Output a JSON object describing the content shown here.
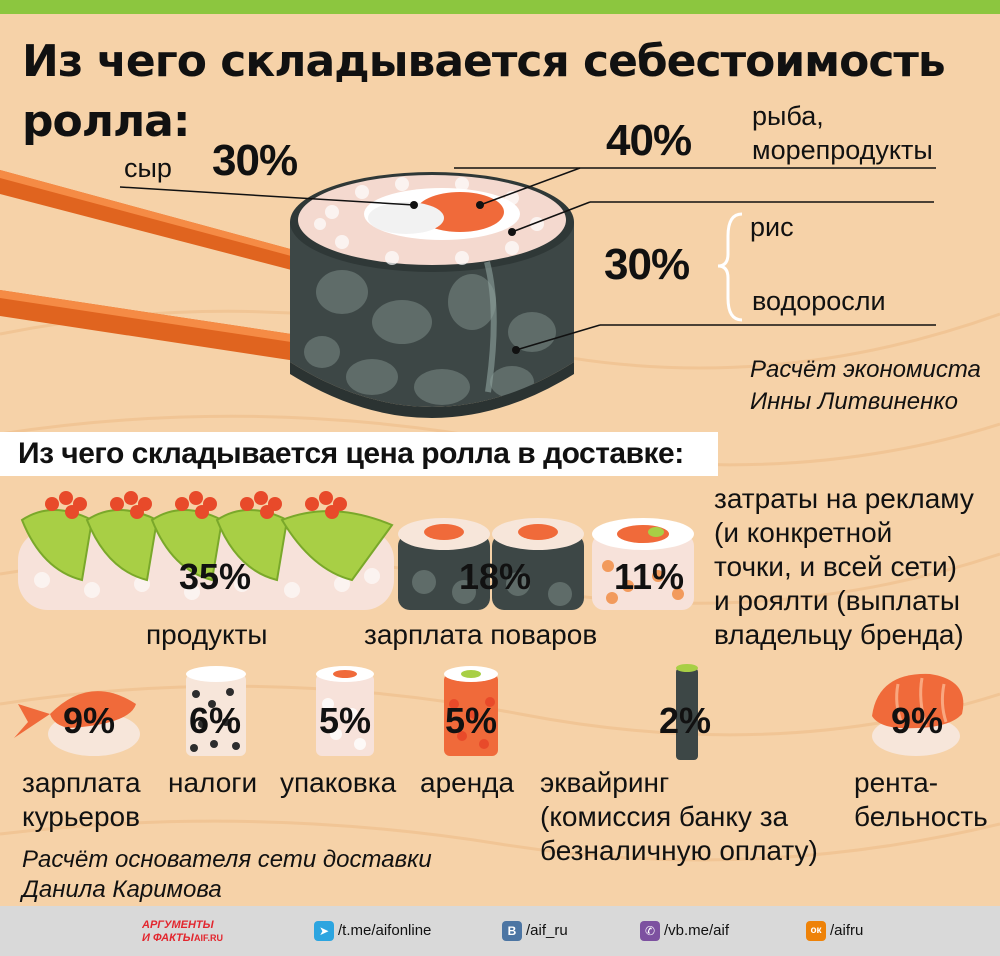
{
  "header": {
    "title_line1": "Из чего складывается себестоимость",
    "title_line2": "ролла:"
  },
  "cost_breakdown": {
    "cheese": {
      "label": "сыр",
      "percent": "30%"
    },
    "fish": {
      "label_line1": "рыба,",
      "label_line2": "морепродукты",
      "percent": "40%"
    },
    "rice_seaweed": {
      "label_rice": "рис",
      "label_seaweed": "водоросли",
      "percent": "30%"
    },
    "source_line1": "Расчёт экономиста",
    "source_line2": "Инны Литвиненко"
  },
  "delivery": {
    "section_title": "Из чего складывается цена ролла в доставке:",
    "items": [
      {
        "percent": "35%",
        "label_lines": [
          "продукты"
        ]
      },
      {
        "percent": "18%",
        "label_lines": [
          "зарплата поваров"
        ]
      },
      {
        "percent": "11%",
        "label_lines": [
          "затраты на рекламу",
          "(и конкретной",
          "точки, и всей сети)",
          "и роялти (выплаты",
          "владельцу бренда)"
        ]
      },
      {
        "percent": "9%",
        "label_lines": [
          "зарплата",
          "курьеров"
        ]
      },
      {
        "percent": "6%",
        "label_lines": [
          "налоги"
        ]
      },
      {
        "percent": "5%",
        "label_lines": [
          "упаковка"
        ]
      },
      {
        "percent": "5%",
        "label_lines": [
          "аренда"
        ]
      },
      {
        "percent": "2%",
        "label_lines": [
          "эквайринг",
          "(комиссия банку за",
          "безналичную оплату)"
        ]
      },
      {
        "percent": "9%",
        "label_lines": [
          "рента-",
          "бельность"
        ]
      }
    ],
    "source_line1": "Расчёт основателя сети доставки",
    "source_line2": "Данила Каримова"
  },
  "chart_data": [
    {
      "type": "table",
      "title": "Из чего складывается себестоимость ролла:",
      "categories": [
        "сыр",
        "рыба, морепродукты",
        "рис, водоросли"
      ],
      "values": [
        30,
        40,
        30
      ],
      "unit": "%"
    },
    {
      "type": "table",
      "title": "Из чего складывается цена ролла в доставке:",
      "categories": [
        "продукты",
        "зарплата поваров",
        "затраты на рекламу (и конкретной точки, и всей сети) и роялти (выплаты владельцу бренда)",
        "зарплата курьеров",
        "налоги",
        "упаковка",
        "аренда",
        "эквайринг (комиссия банку за безналичную оплату)",
        "рентабельность"
      ],
      "values": [
        35,
        18,
        11,
        9,
        6,
        5,
        5,
        2,
        9
      ],
      "unit": "%"
    }
  ],
  "footer": {
    "logo_text_line1": "АРГУМЕНТЫ",
    "logo_text_line2": "И ФАКТЫ",
    "logo_domain": "AIF.RU",
    "links": [
      {
        "icon": "telegram-icon",
        "text": "/t.me/aifonline",
        "color": "#2ca5e0",
        "glyph": "➤"
      },
      {
        "icon": "vk-icon",
        "text": "/aif_ru",
        "color": "#4c75a3",
        "glyph": "В"
      },
      {
        "icon": "viber-icon",
        "text": "/vb.me/aif",
        "color": "#7d51a0",
        "glyph": "✆"
      },
      {
        "icon": "odnoklassniki-icon",
        "text": "/aifru",
        "color": "#ee8208",
        "glyph": "ок"
      }
    ]
  },
  "colors": {
    "background": "#f6d2a8",
    "top_bar": "#8cc63f",
    "chopsticks": "#e0641f",
    "nori": "#3d4746",
    "rice": "#f7e6da",
    "salmon": "#f06a3a",
    "avocado": "#a8cf45",
    "caviar": "#e84a2a"
  }
}
